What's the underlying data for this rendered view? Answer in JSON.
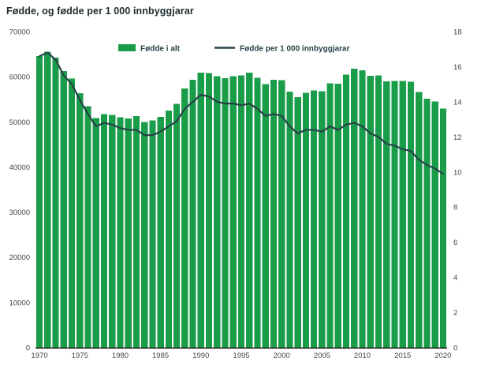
{
  "chart_data": {
    "type": "bar",
    "title": "Fødde, og fødde per 1 000 innbyggjarar",
    "x": [
      1970,
      1971,
      1972,
      1973,
      1974,
      1975,
      1976,
      1977,
      1978,
      1979,
      1980,
      1981,
      1982,
      1983,
      1984,
      1985,
      1986,
      1987,
      1988,
      1989,
      1990,
      1991,
      1992,
      1993,
      1994,
      1995,
      1996,
      1997,
      1998,
      1999,
      2000,
      2001,
      2002,
      2003,
      2004,
      2005,
      2006,
      2007,
      2008,
      2009,
      2010,
      2011,
      2012,
      2013,
      2014,
      2015,
      2016,
      2017,
      2018,
      2019,
      2020
    ],
    "series": [
      {
        "name": "Fødde i alt",
        "type": "bar",
        "axis": "left",
        "color": "#1a9d49",
        "values": [
          64551,
          65550,
          64260,
          61208,
          59603,
          56345,
          53474,
          50877,
          51749,
          51580,
          51039,
          50708,
          51245,
          49937,
          50274,
          51134,
          52514,
          54027,
          57369,
          59303,
          60939,
          60808,
          60109,
          59678,
          60092,
          60292,
          60927,
          59801,
          58352,
          59298,
          59234,
          56696,
          55434,
          56458,
          56951,
          56756,
          58545,
          58459,
          60497,
          61807,
          61442,
          60220,
          60255,
          58995,
          59084,
          59058,
          58890,
          56633,
          55120,
          54495,
          52979
        ]
      },
      {
        "name": "Fødde per 1 000 innbyggjarar",
        "type": "line",
        "axis": "right",
        "color": "#274247",
        "values": [
          16.6,
          16.8,
          16.4,
          15.5,
          15.0,
          14.1,
          13.3,
          12.6,
          12.8,
          12.7,
          12.5,
          12.4,
          12.4,
          12.1,
          12.1,
          12.3,
          12.6,
          12.9,
          13.6,
          14.0,
          14.4,
          14.3,
          14.0,
          13.9,
          13.9,
          13.8,
          13.9,
          13.6,
          13.2,
          13.3,
          13.2,
          12.6,
          12.2,
          12.4,
          12.4,
          12.3,
          12.6,
          12.4,
          12.7,
          12.8,
          12.6,
          12.2,
          12.0,
          11.6,
          11.5,
          11.3,
          11.2,
          10.7,
          10.4,
          10.2,
          9.9
        ]
      }
    ],
    "left_axis": {
      "min": 0,
      "max": 70000,
      "step": 10000
    },
    "right_axis": {
      "min": 0,
      "max": 18,
      "step": 2
    },
    "x_ticks": [
      1970,
      1975,
      1980,
      1985,
      1990,
      1995,
      2000,
      2005,
      2010,
      2015,
      2020
    ],
    "legend_position": "top-center",
    "grid": false,
    "background_color": "#ffffff",
    "axis_line_color": "#1a1a1a",
    "tick_label_color": "#444444"
  }
}
